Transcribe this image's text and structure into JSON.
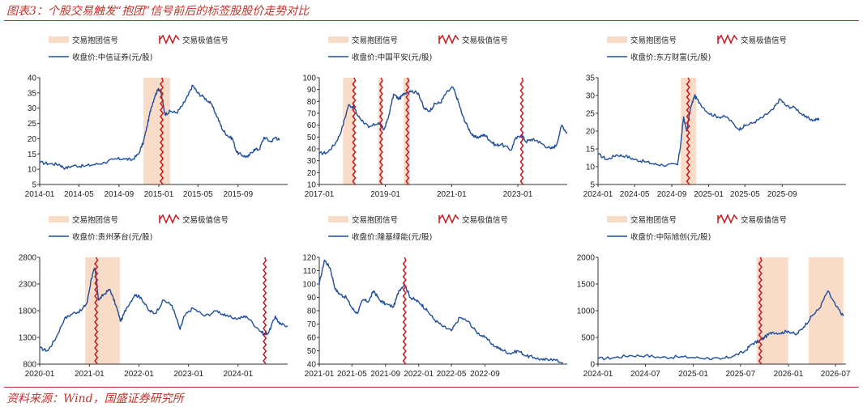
{
  "header": {
    "title": "图表3：个股交易触发“抱团”信号前后的标签股股价走势对比"
  },
  "footer": {
    "source": "资料来源：Wind，国盛证券研究所"
  },
  "colors": {
    "line": "#1f4e9c",
    "shade": "#f9dcc8",
    "signal": "#c8171e",
    "axis": "#333333",
    "accent": "#b3322c"
  },
  "legend": {
    "group_label": "交易抱团信号",
    "value_label": "交易极值信号"
  },
  "chart_data": [
    {
      "type": "line",
      "series_name": "收盘价:中信证券(元/股)",
      "xlim": [
        "2014-01-01",
        "2016-01-31"
      ],
      "ylim": [
        5,
        40
      ],
      "x_ticks": [
        "2014-01",
        "2014-05",
        "2014-09",
        "2015-01",
        "2015-05",
        "2015-09"
      ],
      "y_ticks": [
        5,
        10,
        15,
        20,
        25,
        30,
        35,
        40
      ],
      "shaded_ranges": [
        [
          "2014-11-15",
          "2015-02-05"
        ]
      ],
      "signal_dates": [
        "2015-01-10"
      ],
      "points": [
        [
          "2014-01-02",
          12.2
        ],
        [
          "2014-02-01",
          11.8
        ],
        [
          "2014-03-01",
          11.6
        ],
        [
          "2014-03-20",
          10.3
        ],
        [
          "2014-04-15",
          11.2
        ],
        [
          "2014-05-15",
          11.0
        ],
        [
          "2014-06-15",
          11.5
        ],
        [
          "2014-07-20",
          12.2
        ],
        [
          "2014-08-15",
          13.2
        ],
        [
          "2014-09-15",
          13.5
        ],
        [
          "2014-10-10",
          13.0
        ],
        [
          "2014-10-31",
          15.0
        ],
        [
          "2014-11-15",
          19.0
        ],
        [
          "2014-11-28",
          25.0
        ],
        [
          "2014-12-08",
          30.0
        ],
        [
          "2014-12-20",
          34.0
        ],
        [
          "2014-12-31",
          36.5
        ],
        [
          "2015-01-08",
          35.0
        ],
        [
          "2015-01-20",
          28.0
        ],
        [
          "2015-02-05",
          29.0
        ],
        [
          "2015-02-25",
          28.5
        ],
        [
          "2015-03-15",
          31.0
        ],
        [
          "2015-03-31",
          34.0
        ],
        [
          "2015-04-15",
          37.5
        ],
        [
          "2015-04-30",
          35.0
        ],
        [
          "2015-05-20",
          33.5
        ],
        [
          "2015-06-10",
          31.5
        ],
        [
          "2015-06-30",
          27.0
        ],
        [
          "2015-07-15",
          23.0
        ],
        [
          "2015-07-31",
          21.0
        ],
        [
          "2015-08-15",
          20.0
        ],
        [
          "2015-08-28",
          15.5
        ],
        [
          "2015-09-15",
          14.5
        ],
        [
          "2015-10-01",
          14.0
        ],
        [
          "2015-10-20",
          16.5
        ],
        [
          "2015-11-05",
          16.5
        ],
        [
          "2015-11-20",
          20.5
        ],
        [
          "2015-12-10",
          19.0
        ],
        [
          "2015-12-25",
          20.5
        ],
        [
          "2016-01-06",
          19.5
        ]
      ]
    },
    {
      "type": "line",
      "series_name": "收盘价:中国平安(元/股)",
      "xlim": [
        "2017-01-01",
        "2024-06-30"
      ],
      "ylim": [
        10,
        100
      ],
      "x_ticks": [
        "2017-01",
        "2019-01",
        "2021-01",
        "2023-01"
      ],
      "y_ticks": [
        10,
        20,
        30,
        40,
        50,
        60,
        70,
        80,
        90,
        100
      ],
      "shaded_ranges": [
        [
          "2017-09-20",
          "2018-01-20"
        ],
        [
          "2018-10-15",
          "2018-11-20"
        ],
        [
          "2019-07-20",
          "2019-09-30"
        ]
      ],
      "signal_dates": [
        "2018-01-20",
        "2018-11-15",
        "2019-09-01",
        "2023-02-15"
      ],
      "points": [
        [
          "2017-01-01",
          36
        ],
        [
          "2017-04-01",
          37
        ],
        [
          "2017-07-01",
          45
        ],
        [
          "2017-09-01",
          55
        ],
        [
          "2017-11-20",
          77
        ],
        [
          "2018-01-20",
          75
        ],
        [
          "2018-03-01",
          68
        ],
        [
          "2018-05-01",
          63
        ],
        [
          "2018-07-01",
          58
        ],
        [
          "2018-10-15",
          62
        ],
        [
          "2018-12-15",
          56
        ],
        [
          "2019-02-01",
          66
        ],
        [
          "2019-04-01",
          86
        ],
        [
          "2019-06-01",
          82
        ],
        [
          "2019-08-01",
          87
        ],
        [
          "2019-10-01",
          89
        ],
        [
          "2020-01-01",
          87
        ],
        [
          "2020-03-01",
          74
        ],
        [
          "2020-05-01",
          72
        ],
        [
          "2020-07-01",
          78
        ],
        [
          "2020-09-01",
          79
        ],
        [
          "2020-11-01",
          87
        ],
        [
          "2021-01-15",
          92
        ],
        [
          "2021-03-15",
          80
        ],
        [
          "2021-05-01",
          68
        ],
        [
          "2021-07-01",
          58
        ],
        [
          "2021-09-01",
          50
        ],
        [
          "2021-11-01",
          50
        ],
        [
          "2022-01-01",
          52
        ],
        [
          "2022-03-01",
          47
        ],
        [
          "2022-05-01",
          43
        ],
        [
          "2022-07-01",
          44
        ],
        [
          "2022-10-20",
          39
        ],
        [
          "2022-12-01",
          48
        ],
        [
          "2023-02-15",
          52
        ],
        [
          "2023-04-01",
          46
        ],
        [
          "2023-06-01",
          48
        ],
        [
          "2023-08-01",
          47
        ],
        [
          "2023-10-01",
          44
        ],
        [
          "2024-01-01",
          40
        ],
        [
          "2024-03-01",
          43
        ],
        [
          "2024-05-01",
          60
        ],
        [
          "2024-06-30",
          53
        ]
      ]
    },
    {
      "type": "line",
      "series_name": "收盘价:东方财富(元/股)",
      "xlim": [
        "2024-01-01",
        "2026-03-31"
      ],
      "ylim": [
        5,
        35
      ],
      "x_ticks": [
        "2024-01",
        "2024-05",
        "2024-09",
        "2025-01",
        "2025-05",
        "2025-09"
      ],
      "y_ticks": [
        5,
        10,
        15,
        20,
        25,
        30,
        35
      ],
      "shaded_ranges": [
        [
          "2024-10-01",
          "2024-11-20"
        ]
      ],
      "signal_dates": [
        "2024-10-25"
      ],
      "points": [
        [
          "2024-01-01",
          13.5
        ],
        [
          "2024-02-01",
          12.0
        ],
        [
          "2024-03-01",
          13.3
        ],
        [
          "2024-04-01",
          13.0
        ],
        [
          "2024-05-01",
          12.0
        ],
        [
          "2024-06-01",
          11.5
        ],
        [
          "2024-07-01",
          10.8
        ],
        [
          "2024-08-01",
          10.5
        ],
        [
          "2024-09-20",
          10.5
        ],
        [
          "2024-09-30",
          16.0
        ],
        [
          "2024-10-10",
          24.0
        ],
        [
          "2024-10-20",
          20.0
        ],
        [
          "2024-11-01",
          26.0
        ],
        [
          "2024-11-15",
          30.0
        ],
        [
          "2024-12-01",
          28.0
        ],
        [
          "2025-01-01",
          25.0
        ],
        [
          "2025-02-01",
          24.0
        ],
        [
          "2025-03-01",
          24.0
        ],
        [
          "2025-04-10",
          20.5
        ],
        [
          "2025-05-01",
          21.5
        ],
        [
          "2025-06-01",
          22.5
        ],
        [
          "2025-07-01",
          24.0
        ],
        [
          "2025-08-01",
          26.0
        ],
        [
          "2025-08-25",
          29.0
        ],
        [
          "2025-09-15",
          27.0
        ],
        [
          "2025-10-15",
          26.5
        ],
        [
          "2025-11-15",
          24.0
        ],
        [
          "2025-12-15",
          23.0
        ],
        [
          "2026-01-01",
          23.5
        ]
      ]
    },
    {
      "type": "line",
      "series_name": "收盘价:贵州茅台(元/股)",
      "xlim": [
        "2020-01-01",
        "2024-12-31"
      ],
      "ylim": [
        800,
        2800
      ],
      "x_ticks": [
        "2020-01",
        "2021-01",
        "2022-01",
        "2023-01",
        "2024-01"
      ],
      "y_ticks": [
        800,
        1300,
        1800,
        2300,
        2800
      ],
      "shaded_ranges": [
        [
          "2020-12-01",
          "2021-08-15"
        ]
      ],
      "signal_dates": [
        "2021-02-20",
        "2024-07-15"
      ],
      "points": [
        [
          "2020-01-01",
          1100
        ],
        [
          "2020-03-01",
          1050
        ],
        [
          "2020-05-01",
          1300
        ],
        [
          "2020-07-01",
          1650
        ],
        [
          "2020-09-01",
          1750
        ],
        [
          "2020-11-01",
          1800
        ],
        [
          "2020-12-15",
          1950
        ],
        [
          "2021-01-15",
          2400
        ],
        [
          "2021-02-10",
          2600
        ],
        [
          "2021-03-10",
          2000
        ],
        [
          "2021-04-15",
          2100
        ],
        [
          "2021-06-01",
          2200
        ],
        [
          "2021-07-15",
          1900
        ],
        [
          "2021-08-20",
          1600
        ],
        [
          "2021-10-01",
          1850
        ],
        [
          "2021-12-01",
          2100
        ],
        [
          "2022-01-15",
          2050
        ],
        [
          "2022-03-15",
          1800
        ],
        [
          "2022-05-01",
          1750
        ],
        [
          "2022-07-01",
          2000
        ],
        [
          "2022-09-01",
          1900
        ],
        [
          "2022-10-31",
          1450
        ],
        [
          "2022-12-01",
          1700
        ],
        [
          "2023-02-01",
          1850
        ],
        [
          "2023-05-01",
          1700
        ],
        [
          "2023-08-01",
          1800
        ],
        [
          "2023-10-01",
          1700
        ],
        [
          "2024-01-01",
          1650
        ],
        [
          "2024-03-01",
          1700
        ],
        [
          "2024-06-01",
          1450
        ],
        [
          "2024-07-15",
          1350
        ],
        [
          "2024-08-15",
          1400
        ],
        [
          "2024-10-01",
          1700
        ],
        [
          "2024-11-01",
          1550
        ],
        [
          "2024-12-31",
          1520
        ]
      ]
    },
    {
      "type": "line",
      "series_name": "收盘价:隆基绿能(元/股)",
      "xlim": [
        "2021-01-01",
        "2023-06-30"
      ],
      "ylim": [
        40,
        120
      ],
      "x_ticks": [
        "2021-01",
        "2021-05",
        "2021-09",
        "2022-01",
        "2022-05",
        "2022-09"
      ],
      "y_ticks": [
        40,
        50,
        60,
        70,
        80,
        90,
        100,
        110,
        120
      ],
      "shaded_ranges": [],
      "signal_dates": [
        "2021-11-10"
      ],
      "points": [
        [
          "2021-01-01",
          100
        ],
        [
          "2021-01-20",
          118
        ],
        [
          "2021-02-10",
          112
        ],
        [
          "2021-03-01",
          96
        ],
        [
          "2021-03-20",
          92
        ],
        [
          "2021-04-10",
          90
        ],
        [
          "2021-05-01",
          82
        ],
        [
          "2021-05-20",
          78
        ],
        [
          "2021-06-10",
          88
        ],
        [
          "2021-07-01",
          87
        ],
        [
          "2021-07-20",
          95
        ],
        [
          "2021-08-10",
          88
        ],
        [
          "2021-09-01",
          85
        ],
        [
          "2021-10-01",
          83
        ],
        [
          "2021-10-20",
          95
        ],
        [
          "2021-11-10",
          100
        ],
        [
          "2021-12-01",
          90
        ],
        [
          "2021-12-20",
          88
        ],
        [
          "2022-01-10",
          85
        ],
        [
          "2022-02-01",
          80
        ],
        [
          "2022-03-01",
          73
        ],
        [
          "2022-04-01",
          68
        ],
        [
          "2022-05-01",
          65
        ],
        [
          "2022-06-01",
          75
        ],
        [
          "2022-07-01",
          72
        ],
        [
          "2022-08-01",
          64
        ],
        [
          "2022-09-01",
          60
        ],
        [
          "2022-10-10",
          53
        ],
        [
          "2022-11-01",
          51
        ],
        [
          "2022-12-01",
          48
        ],
        [
          "2023-01-01",
          50
        ],
        [
          "2023-02-01",
          46
        ],
        [
          "2023-03-01",
          45
        ],
        [
          "2023-04-01",
          43
        ],
        [
          "2023-05-01",
          44
        ],
        [
          "2023-06-15",
          41
        ]
      ]
    },
    {
      "type": "line",
      "series_name": "收盘价:中际旭创(元/股)",
      "xlim": [
        "2024-01-01",
        "2026-08-10"
      ],
      "ylim": [
        0,
        2000
      ],
      "x_ticks": [
        "2024-01",
        "2024-07",
        "2025-01",
        "2025-07",
        "2026-01",
        "2026-07"
      ],
      "y_ticks": [
        0,
        500,
        1000,
        1500,
        2000
      ],
      "shaded_ranges": [
        [
          "2025-09-01",
          "2025-12-31"
        ],
        [
          "2026-03-20",
          "2026-07-31"
        ]
      ],
      "signal_dates": [
        "2025-09-15"
      ],
      "points": [
        [
          "2024-01-01",
          100
        ],
        [
          "2024-03-01",
          120
        ],
        [
          "2024-05-01",
          160
        ],
        [
          "2024-07-01",
          160
        ],
        [
          "2024-09-01",
          125
        ],
        [
          "2024-11-01",
          135
        ],
        [
          "2025-01-01",
          125
        ],
        [
          "2025-03-01",
          110
        ],
        [
          "2025-04-15",
          90
        ],
        [
          "2025-06-01",
          150
        ],
        [
          "2025-07-15",
          230
        ],
        [
          "2025-08-15",
          380
        ],
        [
          "2025-09-10",
          430
        ],
        [
          "2025-10-01",
          500
        ],
        [
          "2025-10-31",
          600
        ],
        [
          "2025-12-01",
          580
        ],
        [
          "2025-12-31",
          620
        ],
        [
          "2026-01-31",
          550
        ],
        [
          "2026-03-01",
          700
        ],
        [
          "2026-04-01",
          900
        ],
        [
          "2026-05-01",
          1050
        ],
        [
          "2026-06-01",
          1370
        ],
        [
          "2026-07-01",
          1100
        ],
        [
          "2026-07-31",
          900
        ]
      ]
    }
  ]
}
